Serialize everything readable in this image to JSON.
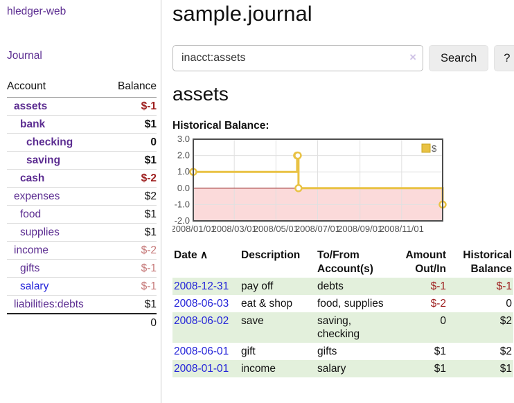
{
  "colors": {
    "link_purple": "#5c2d91",
    "link_blue": "#2323d9",
    "negative_strong": "#9d1d1d",
    "negative_soft": "#c57777",
    "row_stripe_green": "#e3f0dc"
  },
  "sidebar": {
    "brand": "hledger-web",
    "journal_label": "Journal",
    "header": {
      "account": "Account",
      "balance": "Balance"
    },
    "accounts": [
      {
        "name": "assets",
        "balance": "$-1",
        "indent": 0,
        "bold": true,
        "neg": "strong",
        "blue": false
      },
      {
        "name": "bank",
        "balance": "$1",
        "indent": 1,
        "bold": true,
        "neg": null,
        "blue": false
      },
      {
        "name": "checking",
        "balance": "0",
        "indent": 2,
        "bold": true,
        "neg": null,
        "blue": false
      },
      {
        "name": "saving",
        "balance": "$1",
        "indent": 2,
        "bold": true,
        "neg": null,
        "blue": false
      },
      {
        "name": "cash",
        "balance": "$-2",
        "indent": 1,
        "bold": true,
        "neg": "strong",
        "blue": false
      },
      {
        "name": "expenses",
        "balance": "$2",
        "indent": 0,
        "bold": false,
        "neg": null,
        "blue": false
      },
      {
        "name": "food",
        "balance": "$1",
        "indent": 1,
        "bold": false,
        "neg": null,
        "blue": false
      },
      {
        "name": "supplies",
        "balance": "$1",
        "indent": 1,
        "bold": false,
        "neg": null,
        "blue": false
      },
      {
        "name": "income",
        "balance": "$-2",
        "indent": 0,
        "bold": false,
        "neg": "soft",
        "blue": false
      },
      {
        "name": "gifts",
        "balance": "$-1",
        "indent": 1,
        "bold": false,
        "neg": "soft",
        "blue": false
      },
      {
        "name": "salary",
        "balance": "$-1",
        "indent": 1,
        "bold": false,
        "neg": "soft",
        "blue": true
      },
      {
        "name": "liabilities:debts",
        "balance": "$1",
        "indent": 0,
        "bold": false,
        "neg": null,
        "blue": false
      }
    ],
    "total": "0"
  },
  "header": {
    "title": "sample.journal"
  },
  "search": {
    "value": "inacct:assets",
    "clear_icon": "×",
    "button_label": "Search",
    "help_label": "?"
  },
  "account_page": {
    "title": "assets",
    "chart_label": "Historical Balance:"
  },
  "chart_data": {
    "type": "line",
    "step": true,
    "markers": true,
    "title": "Historical Balance",
    "legend": "$",
    "legend_position": "top-right",
    "series": [
      {
        "name": "$",
        "color": "#e9c244",
        "points": [
          {
            "date": "2008-01-01",
            "value": 1
          },
          {
            "date": "2008-06-01",
            "value": 2
          },
          {
            "date": "2008-06-02",
            "value": 2
          },
          {
            "date": "2008-06-03",
            "value": 0
          },
          {
            "date": "2008-12-31",
            "value": -1
          }
        ]
      }
    ],
    "xlim": [
      "2008-01-01",
      "2008-12-31"
    ],
    "ylim": [
      -2,
      3
    ],
    "x_ticks": [
      "2008/01/01",
      "2008/03/01",
      "2008/05/01",
      "2008/07/01",
      "2008/09/01",
      "2008/11/01"
    ],
    "y_ticks": [
      3,
      2,
      1,
      0,
      -1,
      -2
    ],
    "grid": true,
    "grid_color": "#e0e0e0",
    "border_color": "#4d4d4d",
    "zero_line_color": "#8c1010",
    "negative_region_color": "#fbdada"
  },
  "register": {
    "columns": [
      {
        "label": "Date",
        "align": "left",
        "sort_indicator": "∧"
      },
      {
        "label": "Description",
        "align": "left",
        "sort_indicator": null
      },
      {
        "label": "To/From Account(s)",
        "align": "left",
        "sort_indicator": null
      },
      {
        "label": "Amount Out/In",
        "align": "right",
        "sort_indicator": null
      },
      {
        "label": "Historical Balance",
        "align": "right",
        "sort_indicator": null
      }
    ],
    "rows": [
      {
        "date": "2008-12-31",
        "description": "pay off",
        "accounts": "debts",
        "amount": "$-1",
        "balance": "$-1"
      },
      {
        "date": "2008-06-03",
        "description": "eat & shop",
        "accounts": "food, supplies",
        "amount": "$-2",
        "balance": "0"
      },
      {
        "date": "2008-06-02",
        "description": "save",
        "accounts": "saving, checking",
        "amount": "0",
        "balance": "$2"
      },
      {
        "date": "2008-06-01",
        "description": "gift",
        "accounts": "gifts",
        "amount": "$1",
        "balance": "$2"
      },
      {
        "date": "2008-01-01",
        "description": "income",
        "accounts": "salary",
        "amount": "$1",
        "balance": "$1"
      }
    ]
  }
}
